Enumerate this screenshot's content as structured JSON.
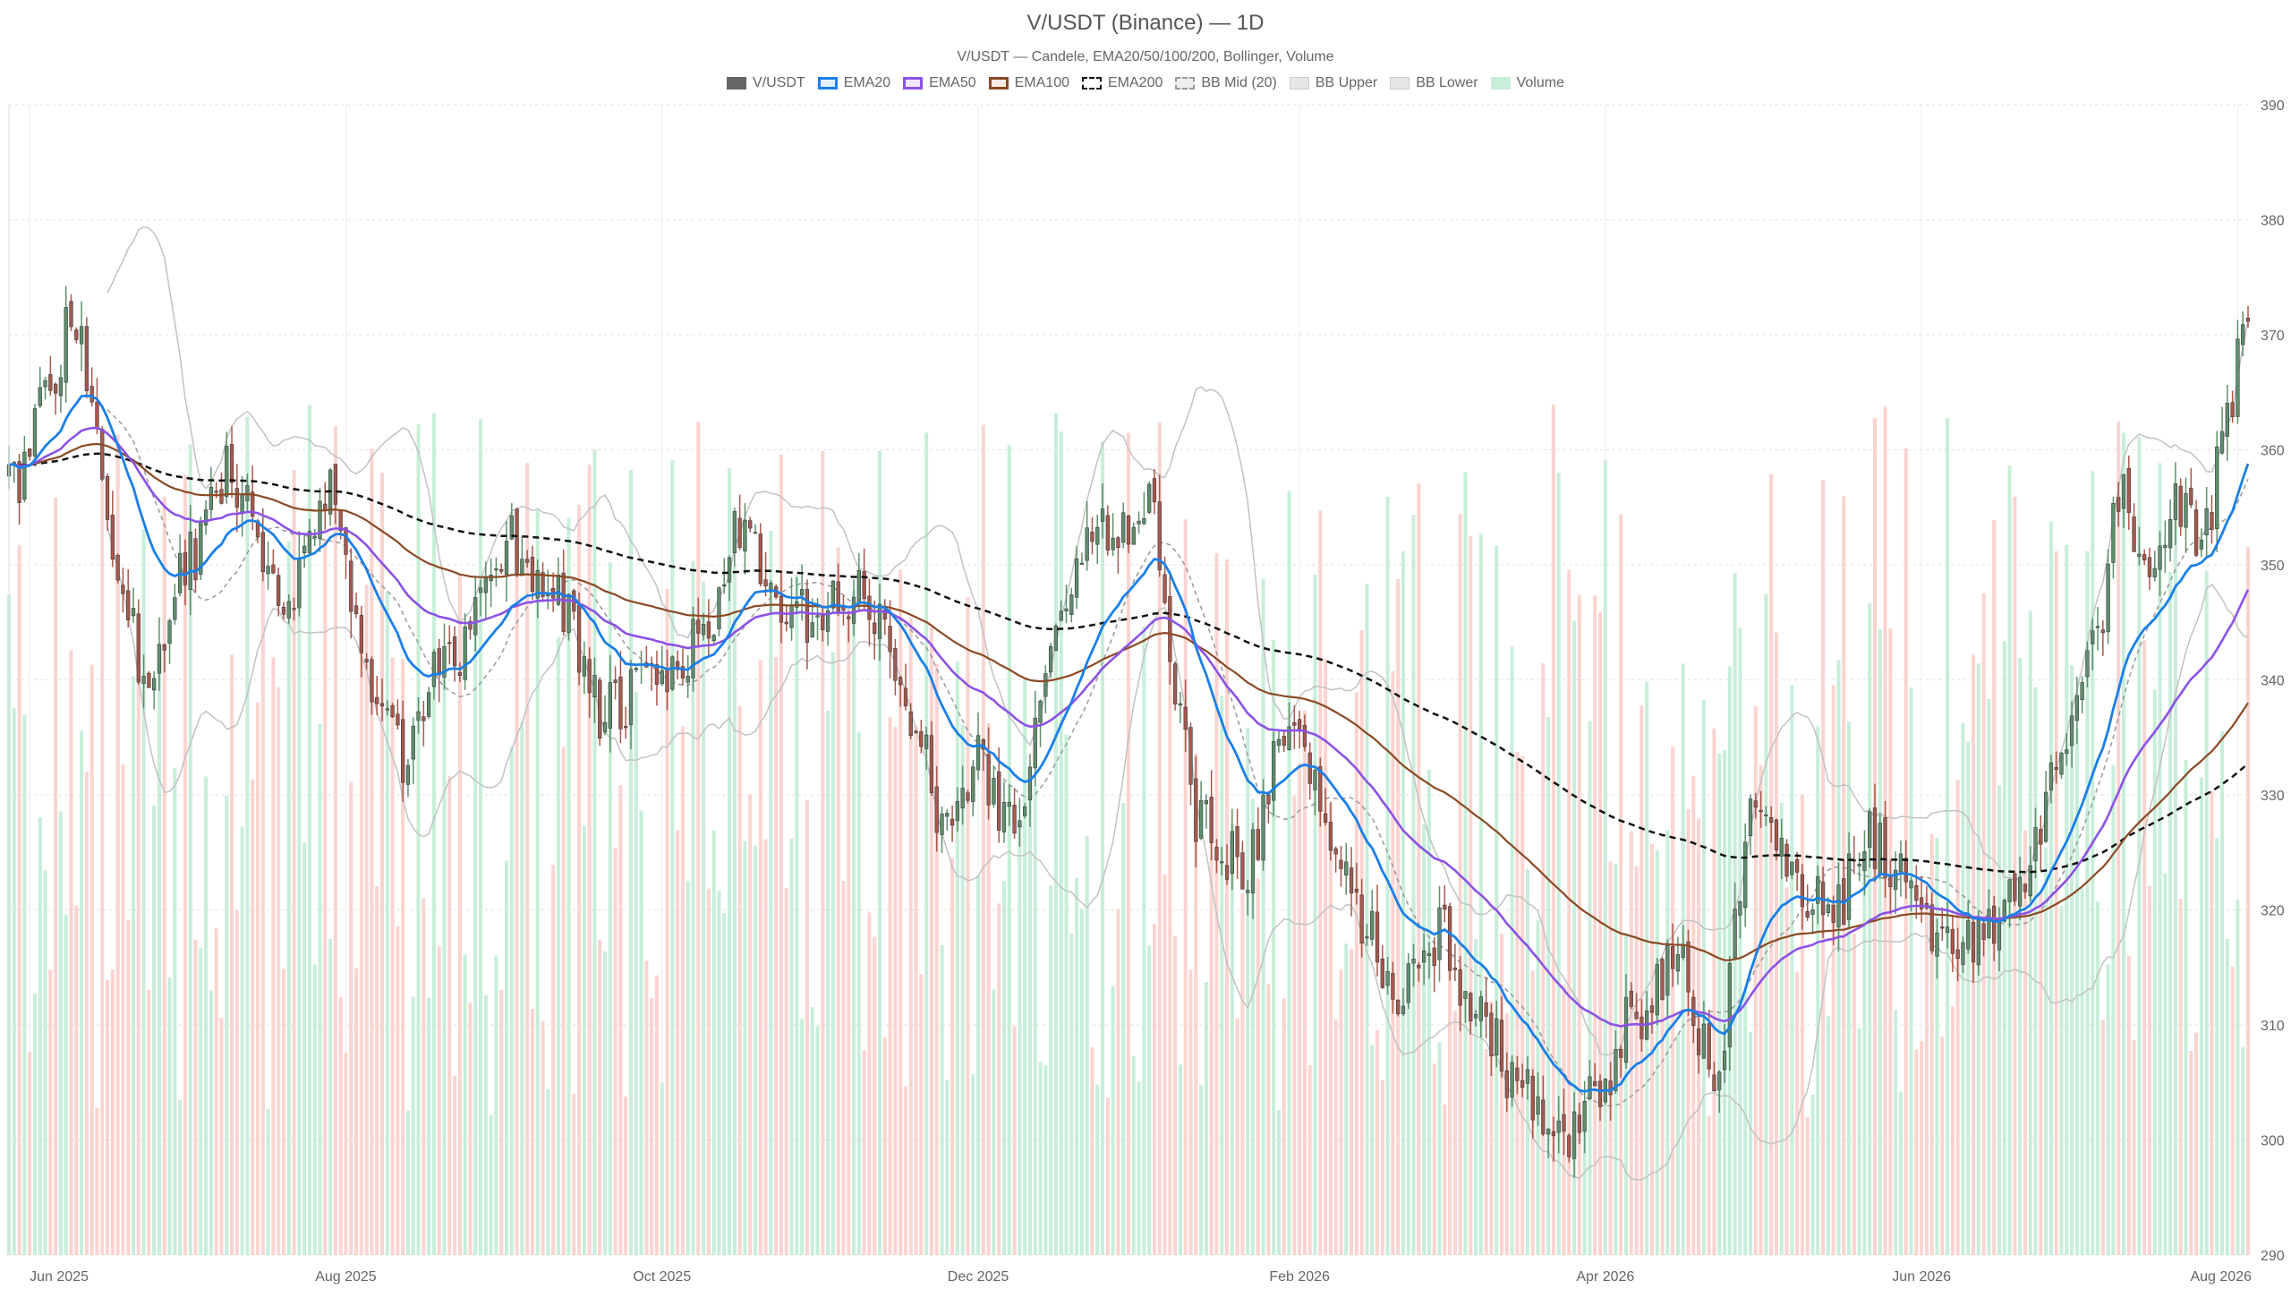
{
  "chart_data": {
    "type": "candlestick",
    "title": "V/USDT (Binance) — 1D",
    "subtitle": "V/USDT — Candele, EMA20/50/100/200, Bollinger, Volume",
    "legend": {
      "placement": "top-center",
      "items": [
        {
          "label": "V/USDT",
          "swatch": "solid",
          "color": "#666666",
          "fill": "#666666"
        },
        {
          "label": "EMA20",
          "swatch": "line",
          "color": "#1a7fe8",
          "fill": "#e3f0ff"
        },
        {
          "label": "EMA50",
          "swatch": "line",
          "color": "#8c52e6",
          "fill": "#efe6ff"
        },
        {
          "label": "EMA100",
          "swatch": "line",
          "color": "#8a4a24",
          "fill": "#f5ece6"
        },
        {
          "label": "EMA200",
          "swatch": "dashed",
          "color": "#111111",
          "fill": "#ffffff"
        },
        {
          "label": "BB Mid (20)",
          "swatch": "dashed",
          "color": "#999999",
          "fill": "#eeeeee"
        },
        {
          "label": "BB Upper",
          "swatch": "solid-light",
          "color": "#cccccc",
          "fill": "#e6e6e6"
        },
        {
          "label": "BB Lower",
          "swatch": "solid-light",
          "color": "#cccccc",
          "fill": "#e6e6e6"
        },
        {
          "label": "Volume",
          "swatch": "solid-light",
          "color": "#c8eed9",
          "fill": "#c8eed9"
        }
      ]
    },
    "x_axis": {
      "start": "2025-05-28",
      "end": "2026-08-03",
      "tick_labels": [
        {
          "date": "2025-06-01",
          "label": "Jun 2025"
        },
        {
          "date": "2025-08-01",
          "label": "Aug 2025"
        },
        {
          "date": "2025-10-01",
          "label": "Oct 2025"
        },
        {
          "date": "2025-12-01",
          "label": "Dec 2025"
        },
        {
          "date": "2026-02-01",
          "label": "Feb 2026"
        },
        {
          "date": "2026-04-01",
          "label": "Apr 2026"
        },
        {
          "date": "2026-06-01",
          "label": "Jun 2026"
        },
        {
          "date": "2026-08-01",
          "label": "Aug 2026"
        }
      ]
    },
    "y_axis": {
      "position": "right",
      "min": 290,
      "max": 390,
      "ticks": [
        290,
        300,
        310,
        320,
        330,
        340,
        350,
        360,
        370,
        380,
        390
      ]
    },
    "grid": true,
    "colors": {
      "candle_up": "#5e8f6c",
      "candle_down": "#a8584d",
      "volume_up": "#c8eed9",
      "volume_down": "#fad4d0",
      "ema20": "#1a7fe8",
      "ema50": "#8c52e6",
      "ema100": "#8a4a24",
      "ema200": "#111111",
      "bb_mid": "#999999",
      "bb_band": "#c2c2c2"
    },
    "close_anchors": [
      [
        "2025-05-28",
        356
      ],
      [
        "2025-06-03",
        364
      ],
      [
        "2025-06-10",
        372
      ],
      [
        "2025-06-14",
        360
      ],
      [
        "2025-06-20",
        345
      ],
      [
        "2025-06-24",
        338
      ],
      [
        "2025-07-01",
        350
      ],
      [
        "2025-07-10",
        358
      ],
      [
        "2025-07-20",
        348
      ],
      [
        "2025-07-30",
        356
      ],
      [
        "2025-08-05",
        340
      ],
      [
        "2025-08-12",
        333
      ],
      [
        "2025-08-20",
        341
      ],
      [
        "2025-09-01",
        352
      ],
      [
        "2025-09-10",
        348
      ],
      [
        "2025-09-20",
        337
      ],
      [
        "2025-10-01",
        340
      ],
      [
        "2025-10-10",
        344
      ],
      [
        "2025-10-15",
        353
      ],
      [
        "2025-10-25",
        345
      ],
      [
        "2025-11-03",
        346
      ],
      [
        "2025-11-10",
        347
      ],
      [
        "2025-11-18",
        337
      ],
      [
        "2025-11-25",
        327
      ],
      [
        "2025-12-01",
        333
      ],
      [
        "2025-12-08",
        327
      ],
      [
        "2025-12-12",
        336
      ],
      [
        "2025-12-20",
        350
      ],
      [
        "2025-12-28",
        354
      ],
      [
        "2026-01-03",
        355
      ],
      [
        "2026-01-08",
        340
      ],
      [
        "2026-01-13",
        327
      ],
      [
        "2026-01-22",
        324
      ],
      [
        "2026-01-30",
        336
      ],
      [
        "2026-02-06",
        328
      ],
      [
        "2026-02-12",
        320
      ],
      [
        "2026-02-20",
        313
      ],
      [
        "2026-02-28",
        318
      ],
      [
        "2026-03-08",
        310
      ],
      [
        "2026-03-15",
        305
      ],
      [
        "2026-03-22",
        299
      ],
      [
        "2026-03-30",
        303
      ],
      [
        "2026-04-07",
        311
      ],
      [
        "2026-04-15",
        315
      ],
      [
        "2026-04-22",
        306
      ],
      [
        "2026-04-30",
        330
      ],
      [
        "2026-05-07",
        322
      ],
      [
        "2026-05-15",
        320
      ],
      [
        "2026-05-22",
        326
      ],
      [
        "2026-05-29",
        323
      ],
      [
        "2026-06-05",
        318
      ],
      [
        "2026-06-12",
        317
      ],
      [
        "2026-06-20",
        323
      ],
      [
        "2026-06-28",
        332
      ],
      [
        "2026-07-05",
        345
      ],
      [
        "2026-07-10",
        357
      ],
      [
        "2026-07-14",
        348
      ],
      [
        "2026-07-20",
        356
      ],
      [
        "2026-07-25",
        351
      ],
      [
        "2026-07-30",
        363
      ],
      [
        "2026-08-03",
        371
      ]
    ],
    "volume_range": [
      0,
      8800
    ]
  }
}
